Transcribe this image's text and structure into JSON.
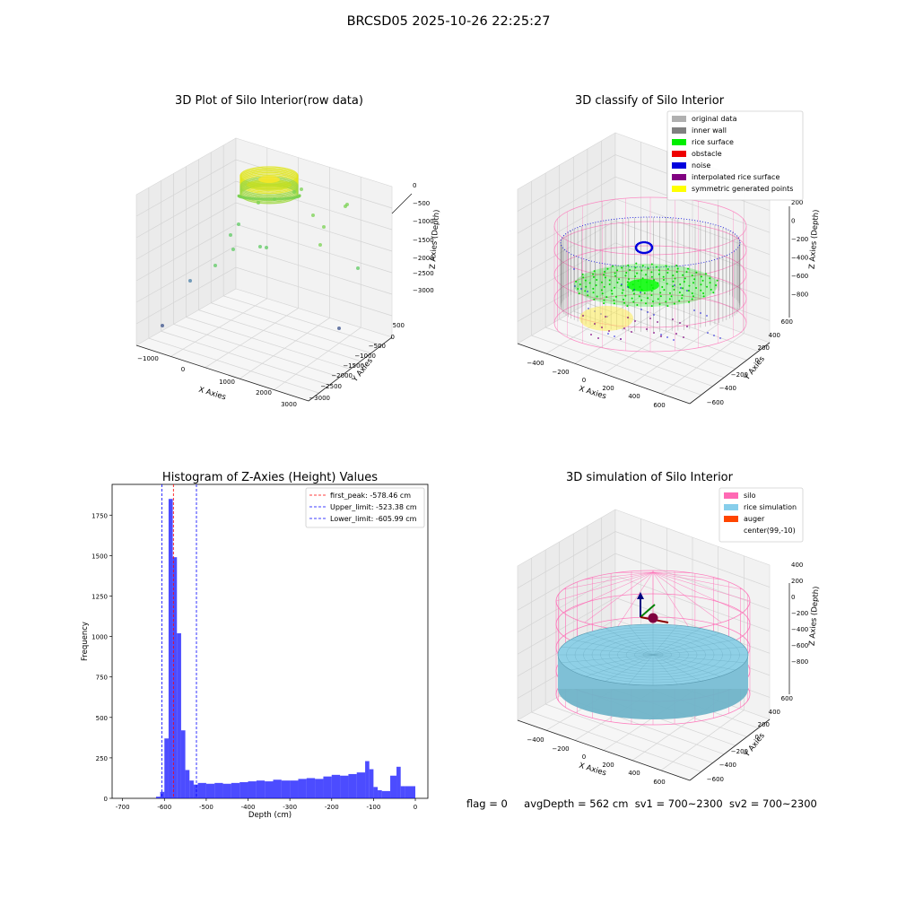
{
  "figure": {
    "suptitle": "BRCSD05 2025-10-26 22:25:27",
    "status": {
      "flag": "flag = 0",
      "avg_depth": "avgDepth = 562 cm",
      "sv1": "sv1 = 700~2300",
      "sv2": "sv2 = 700~2300"
    }
  },
  "chart_data": [
    {
      "type": "scatter",
      "title": "3D Plot of Silo Interior(row data)",
      "xlabel": "X Axies",
      "ylabel": "Y Axies",
      "zlabel": "Z Axies (Depth)",
      "x_ticks": [
        "−1000",
        "0",
        "1000",
        "2000",
        "3000"
      ],
      "y_ticks": [
        "500",
        "0",
        "−500",
        "−1000",
        "−1500",
        "−2000",
        "−2500",
        "−3000"
      ],
      "z_ticks": [
        "0",
        "−500",
        "−1000",
        "−1500",
        "−2000",
        "−2500",
        "−3000"
      ],
      "colormap": "viridis",
      "outlier_points": [
        {
          "x": -1100,
          "y": -2900,
          "z": -3000
        },
        {
          "x": -900,
          "y": -2300,
          "z": -2500
        },
        {
          "x": -700,
          "y": -1800,
          "z": -2000
        },
        {
          "x": -500,
          "y": -1500,
          "z": -1500
        },
        {
          "x": -400,
          "y": -1300,
          "z": -1300
        },
        {
          "x": 200,
          "y": -1500,
          "z": -1500
        },
        {
          "x": 400,
          "y": -1600,
          "z": -1500
        },
        {
          "x": 1200,
          "y": -800,
          "z": -1100
        },
        {
          "x": 1500,
          "y": -600,
          "z": -1300
        },
        {
          "x": 2000,
          "y": -400,
          "z": -700
        },
        {
          "x": 3000,
          "y": -500,
          "z": -2200
        },
        {
          "x": 2600,
          "y": -2500,
          "z": -2900
        },
        {
          "x": 0,
          "y": 0,
          "z": -500
        }
      ]
    },
    {
      "type": "scatter",
      "title": "3D classify of Silo Interior",
      "xlabel": "X Axies",
      "ylabel": "Y Axies",
      "zlabel": "Z Axies (Depth)",
      "x_ticks": [
        "−400",
        "−200",
        "0",
        "200",
        "400",
        "600"
      ],
      "y_ticks": [
        "600",
        "400",
        "200",
        "0",
        "−200",
        "−400",
        "−600"
      ],
      "z_ticks": [
        "200",
        "0",
        "−200",
        "−400",
        "−600",
        "−800"
      ],
      "legend_position": "top-right",
      "legend": [
        {
          "label": "original data",
          "color": "#b0b0b0"
        },
        {
          "label": "inner wall",
          "color": "#808080"
        },
        {
          "label": "rice surface",
          "color": "#00ee00"
        },
        {
          "label": "obstacle",
          "color": "#ee0000"
        },
        {
          "label": "noise",
          "color": "#0000dd"
        },
        {
          "label": "interpolated rice surface",
          "color": "#800080"
        },
        {
          "label": "symmetric generated points",
          "color": "#ffff00"
        }
      ]
    },
    {
      "type": "bar",
      "title": "Histogram of Z-Axies (Height) Values",
      "xlabel": "Depth (cm)",
      "ylabel": "Frequency",
      "bar_color": "#0000ff",
      "xlim": [
        -725,
        30
      ],
      "ylim": [
        0,
        1940
      ],
      "x_ticks": [
        -700,
        -600,
        -500,
        -400,
        -300,
        -200,
        -100,
        0
      ],
      "y_ticks": [
        0,
        250,
        500,
        750,
        1000,
        1250,
        1500,
        1750
      ],
      "bins": [
        {
          "x0": -620,
          "x1": -610,
          "count": 10
        },
        {
          "x0": -610,
          "x1": -600,
          "count": 40
        },
        {
          "x0": -600,
          "x1": -590,
          "count": 370
        },
        {
          "x0": -590,
          "x1": -580,
          "count": 1850
        },
        {
          "x0": -580,
          "x1": -570,
          "count": 1490
        },
        {
          "x0": -570,
          "x1": -560,
          "count": 1020
        },
        {
          "x0": -560,
          "x1": -550,
          "count": 420
        },
        {
          "x0": -550,
          "x1": -540,
          "count": 175
        },
        {
          "x0": -540,
          "x1": -530,
          "count": 110
        },
        {
          "x0": -530,
          "x1": -520,
          "count": 85
        },
        {
          "x0": -520,
          "x1": -500,
          "count": 95
        },
        {
          "x0": -500,
          "x1": -480,
          "count": 90
        },
        {
          "x0": -480,
          "x1": -460,
          "count": 95
        },
        {
          "x0": -460,
          "x1": -440,
          "count": 90
        },
        {
          "x0": -440,
          "x1": -420,
          "count": 95
        },
        {
          "x0": -420,
          "x1": -400,
          "count": 100
        },
        {
          "x0": -400,
          "x1": -380,
          "count": 105
        },
        {
          "x0": -380,
          "x1": -360,
          "count": 110
        },
        {
          "x0": -360,
          "x1": -340,
          "count": 105
        },
        {
          "x0": -340,
          "x1": -320,
          "count": 115
        },
        {
          "x0": -320,
          "x1": -300,
          "count": 110
        },
        {
          "x0": -300,
          "x1": -280,
          "count": 110
        },
        {
          "x0": -280,
          "x1": -260,
          "count": 120
        },
        {
          "x0": -260,
          "x1": -240,
          "count": 125
        },
        {
          "x0": -240,
          "x1": -220,
          "count": 120
        },
        {
          "x0": -220,
          "x1": -200,
          "count": 135
        },
        {
          "x0": -200,
          "x1": -180,
          "count": 145
        },
        {
          "x0": -180,
          "x1": -160,
          "count": 140
        },
        {
          "x0": -160,
          "x1": -140,
          "count": 150
        },
        {
          "x0": -140,
          "x1": -120,
          "count": 160
        },
        {
          "x0": -120,
          "x1": -110,
          "count": 230
        },
        {
          "x0": -110,
          "x1": -100,
          "count": 180
        },
        {
          "x0": -100,
          "x1": -90,
          "count": 70
        },
        {
          "x0": -90,
          "x1": -80,
          "count": 50
        },
        {
          "x0": -80,
          "x1": -60,
          "count": 45
        },
        {
          "x0": -60,
          "x1": -45,
          "count": 140
        },
        {
          "x0": -45,
          "x1": -35,
          "count": 195
        },
        {
          "x0": -35,
          "x1": -25,
          "count": 75
        },
        {
          "x0": -25,
          "x1": 0,
          "count": 75
        }
      ],
      "vlines": [
        {
          "label": "first_peak: -578.46 cm",
          "value": -578.46,
          "color": "#ff0000"
        },
        {
          "label": "Upper_limit: -523.38 cm",
          "value": -523.38,
          "color": "#0000ff"
        },
        {
          "label": "Lower_limit: -605.99 cm",
          "value": -605.99,
          "color": "#0000ff"
        }
      ],
      "legend_position": "top-right"
    },
    {
      "type": "scatter",
      "title": "3D simulation of Silo Interior",
      "xlabel": "X Axies",
      "ylabel": "Y Axies",
      "zlabel": "Z Axies (Depth)",
      "x_ticks": [
        "−400",
        "−200",
        "0",
        "200",
        "400",
        "600"
      ],
      "y_ticks": [
        "600",
        "400",
        "200",
        "0",
        "−200",
        "−400",
        "−600"
      ],
      "z_ticks": [
        "400",
        "200",
        "0",
        "−200",
        "−400",
        "−600",
        "−800"
      ],
      "legend_position": "top-right",
      "legend": [
        {
          "label": "silo",
          "color": "#ff69b4"
        },
        {
          "label": "rice simulation",
          "color": "#87ceeb"
        },
        {
          "label": "auger",
          "color": "#ff4500"
        },
        {
          "label": "center(99,-10)",
          "color": "#ffffff"
        }
      ]
    }
  ]
}
